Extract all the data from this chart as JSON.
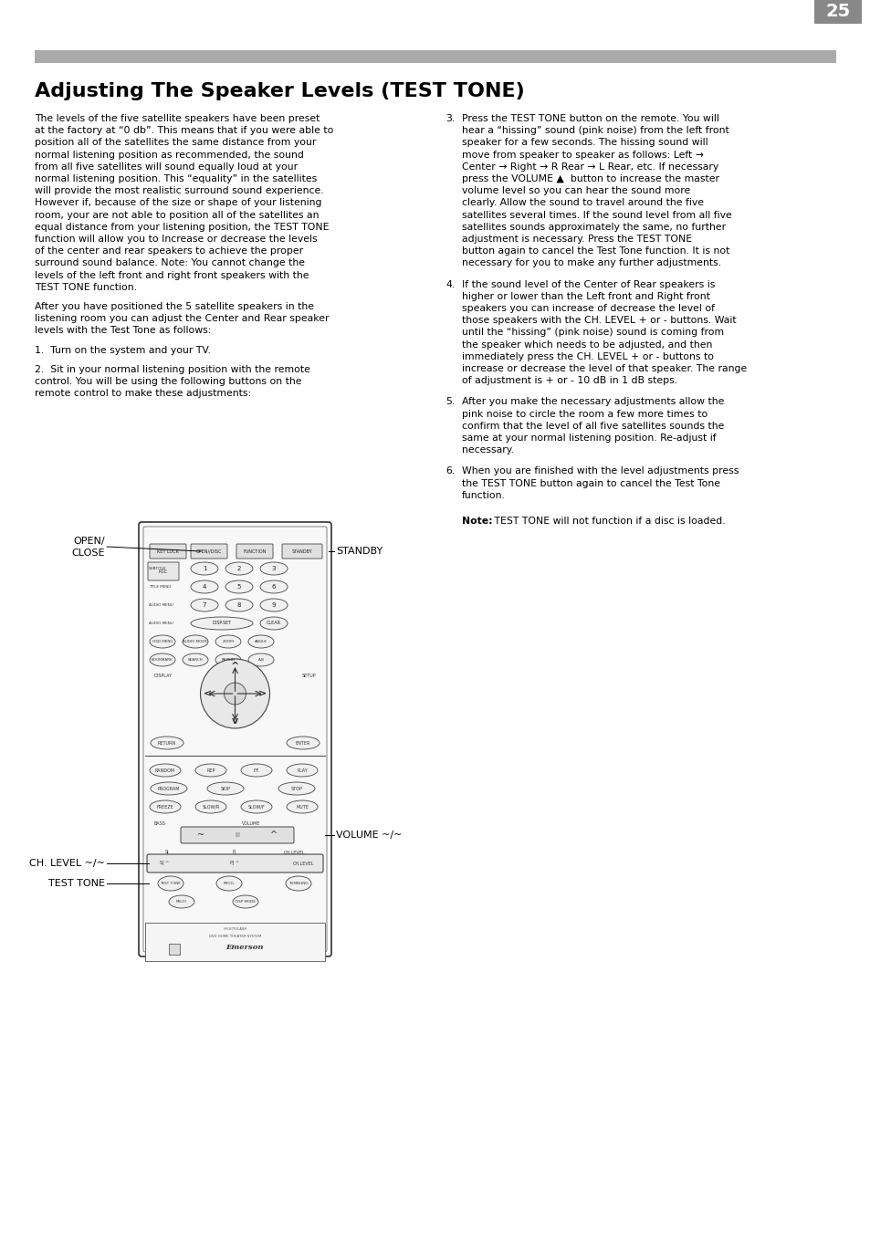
{
  "page_bg": "#ffffff",
  "header_bar_color": "#aaaaaa",
  "title": "Adjusting The Speaker Levels (TEST TONE)",
  "body_fontsize": 7.8,
  "note_bold": "Note:",
  "note_rest": " TEST TONE will not function if a disc is loaded.",
  "page_number": "25",
  "page_number_bg": "#888888",
  "left_col_text_blocks": [
    "The levels of the five satellite speakers have been preset\nat the factory at “0 db”. This means that if you were able to\nposition all of the satellites the same distance from your\nnormal listening position as recommended, the sound\nfrom all five satellites will sound equally loud at your\nnormal listening position. This “equality” in the satellites\nwill provide the most realistic surround sound experience.\nHowever if, because of the size or shape of your listening\nroom, your are not able to position all of the satellites an\nequal distance from your listening position, the TEST TONE\nfunction will allow you to Increase or decrease the levels\nof the center and rear speakers to achieve the proper\nsurround sound balance. Note: You cannot change the\nlevels of the left front and right front speakers with the\nTEST TONE function.",
    "After you have positioned the 5 satellite speakers in the\nlistening room you can adjust the Center and Rear speaker\nlevels with the Test Tone as follows:",
    "1.  Turn on the system and your TV.",
    "2.  Sit in your normal listening position with the remote\ncontrol. You will be using the following buttons on the\nremote control to make these adjustments:"
  ],
  "right_col_items": [
    {
      "num": "3.",
      "text": "Press the TEST TONE button on the remote. You will\nhear a “hissing” sound (pink noise) from the left front\nspeaker for a few seconds. The hissing sound will\nmove from speaker to speaker as follows: Left →\nCenter → Right → R Rear → L Rear, etc. If necessary\npress the VOLUME ▲  button to increase the master\nvolume level so you can hear the sound more\nclearly. Allow the sound to travel around the five\nsatellites several times. If the sound level from all five\nsatellites sounds approximately the same, no further\nadjustment is necessary. Press the TEST TONE\nbutton again to cancel the Test Tone function. It is not\nnecessary for you to make any further adjustments."
    },
    {
      "num": "4.",
      "text": "If the sound level of the Center of Rear speakers is\nhigher or lower than the Left front and Right front\nspeakers you can increase of decrease the level of\nthose speakers with the CH. LEVEL + or - buttons. Wait\nuntil the “hissing” (pink noise) sound is coming from\nthe speaker which needs to be adjusted, and then\nimmediately press the CH. LEVEL + or - buttons to\nincrease or decrease the level of that speaker. The range\nof adjustment is + or - 10 dB in 1 dB steps."
    },
    {
      "num": "5.",
      "text": "After you make the necessary adjustments allow the\npink noise to circle the room a few more times to\nconfirm that the level of all five satellites sounds the\nsame at your normal listening position. Re-adjust if\nnecessary."
    },
    {
      "num": "6.",
      "text": "When you are finished with the level adjustments press\nthe TEST TONE button again to cancel the Test Tone\nfunction."
    }
  ]
}
